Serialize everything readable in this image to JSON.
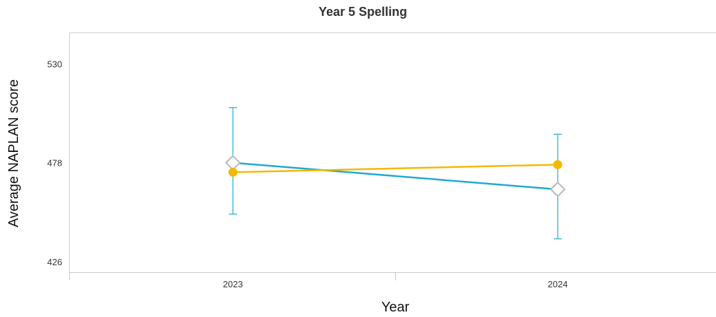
{
  "chart_data": {
    "type": "line",
    "title": "Year 5 Spelling",
    "xlabel": "Year",
    "ylabel": "Average NAPLAN score",
    "categories": [
      "2023",
      "2024"
    ],
    "yticks": [
      426,
      478,
      530
    ],
    "ylim": [
      420.5,
      546.5
    ],
    "grid": false,
    "series": [
      {
        "color": "#1ea9d2",
        "marker": "diamond",
        "values": [
          478,
          464
        ],
        "error_low": [
          451,
          438
        ],
        "error_high": [
          507,
          493
        ]
      },
      {
        "color": "#f5b800",
        "marker": "circle",
        "values": [
          473,
          477
        ]
      }
    ],
    "colors": {
      "axis": "#c8c8c8",
      "plot_border": "#d0d0d0",
      "diamond_stroke": "#b8b8b8"
    }
  }
}
